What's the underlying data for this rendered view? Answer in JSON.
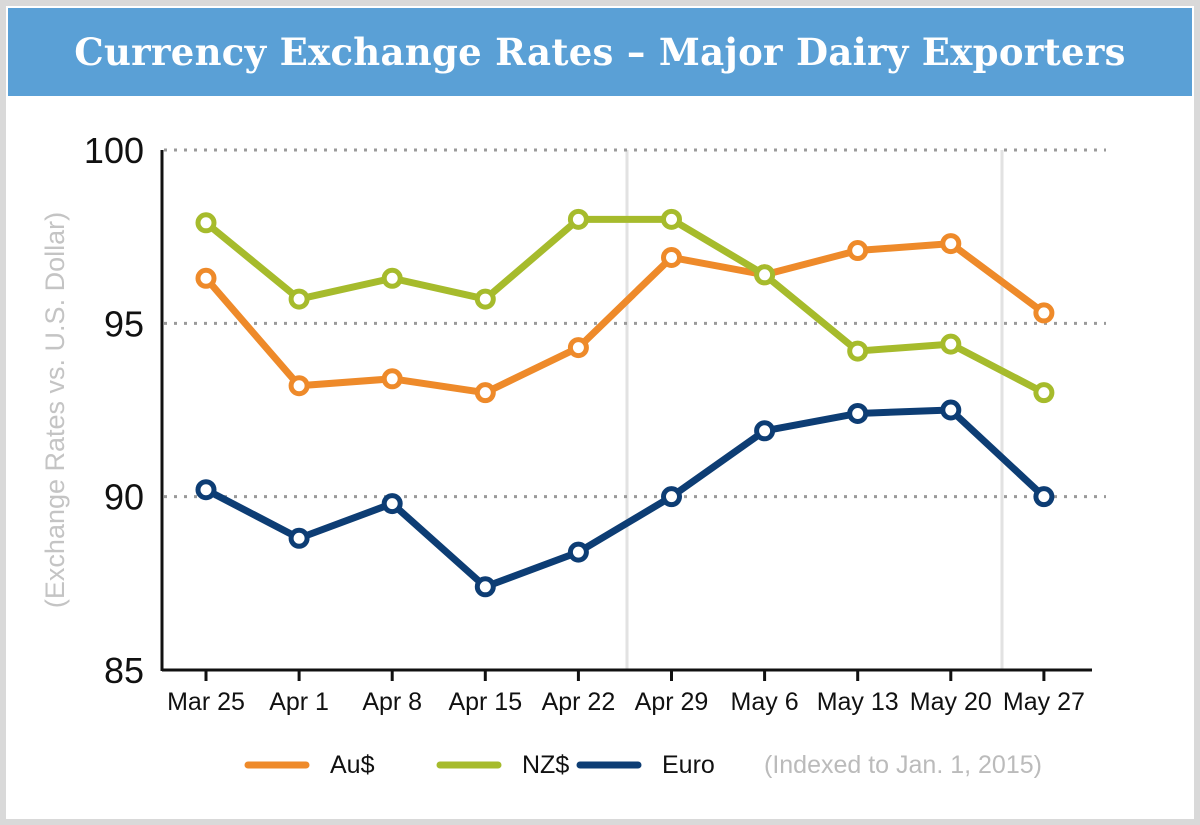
{
  "chart_data": {
    "type": "line",
    "title": "Currency Exchange Rates – Major Dairy Exporters",
    "ylabel": "(Exchange Rates vs. U.S. Dollar)",
    "xlabel": "",
    "note": "(Indexed to Jan. 1, 2015)",
    "categories": [
      "Mar 25",
      "Apr 1",
      "Apr 8",
      "Apr 15",
      "Apr 22",
      "Apr 29",
      "May 6",
      "May 13",
      "May 20",
      "May 27"
    ],
    "ylim": [
      85,
      100
    ],
    "yticks": [
      100,
      95,
      90,
      85
    ],
    "grid": "horizontal dotted at 100, 95, 90",
    "legend_position": "bottom",
    "series": [
      {
        "name": "Au$",
        "color": "#ee8a2a",
        "values": [
          96.3,
          93.2,
          93.4,
          93.0,
          94.3,
          96.9,
          96.4,
          97.1,
          97.3,
          95.3
        ]
      },
      {
        "name": "NZ$",
        "color": "#a6bb2c",
        "values": [
          97.9,
          95.7,
          96.3,
          95.7,
          98.0,
          98.0,
          96.4,
          94.2,
          94.4,
          93.0
        ]
      },
      {
        "name": "Euro",
        "color": "#0d3d74",
        "values": [
          90.2,
          88.8,
          89.8,
          87.4,
          88.4,
          90.0,
          91.9,
          92.4,
          92.5,
          90.0
        ]
      }
    ]
  }
}
